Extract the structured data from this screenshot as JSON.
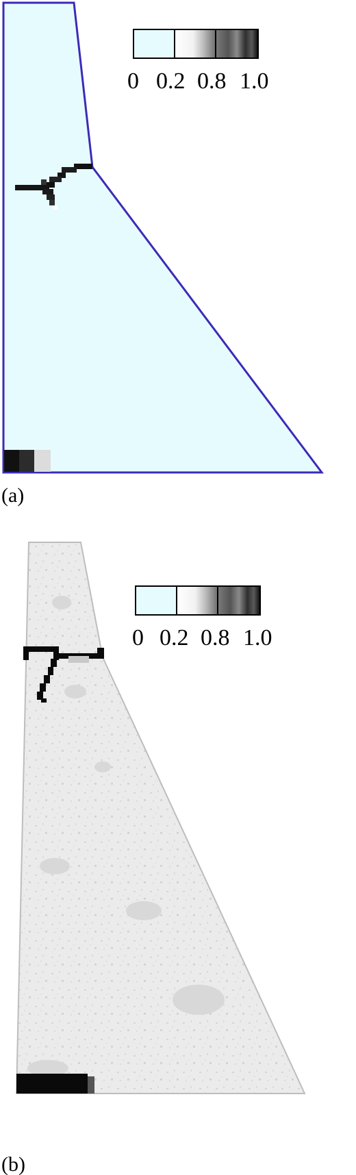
{
  "panels": [
    {
      "id": "a",
      "label": "(a)",
      "colorbar": {
        "ticks": [
          "0",
          "0.2",
          "0.8",
          "1.0"
        ],
        "low_color": "#e6fbfd",
        "high_color": "#0b0b0b"
      },
      "body_color": "#e6fbfd",
      "outline_color": "#3b2bb8",
      "crack_color": "#111111"
    },
    {
      "id": "b",
      "label": "(b)",
      "colorbar": {
        "ticks": [
          "0",
          "0.2",
          "0.8",
          "1.0"
        ],
        "low_color": "#e6fbfd",
        "high_color": "#0b0b0b"
      },
      "body_color": "#ebebeb",
      "outline_color": "#bdbdbd",
      "crack_color": "#0a0a0a"
    }
  ]
}
